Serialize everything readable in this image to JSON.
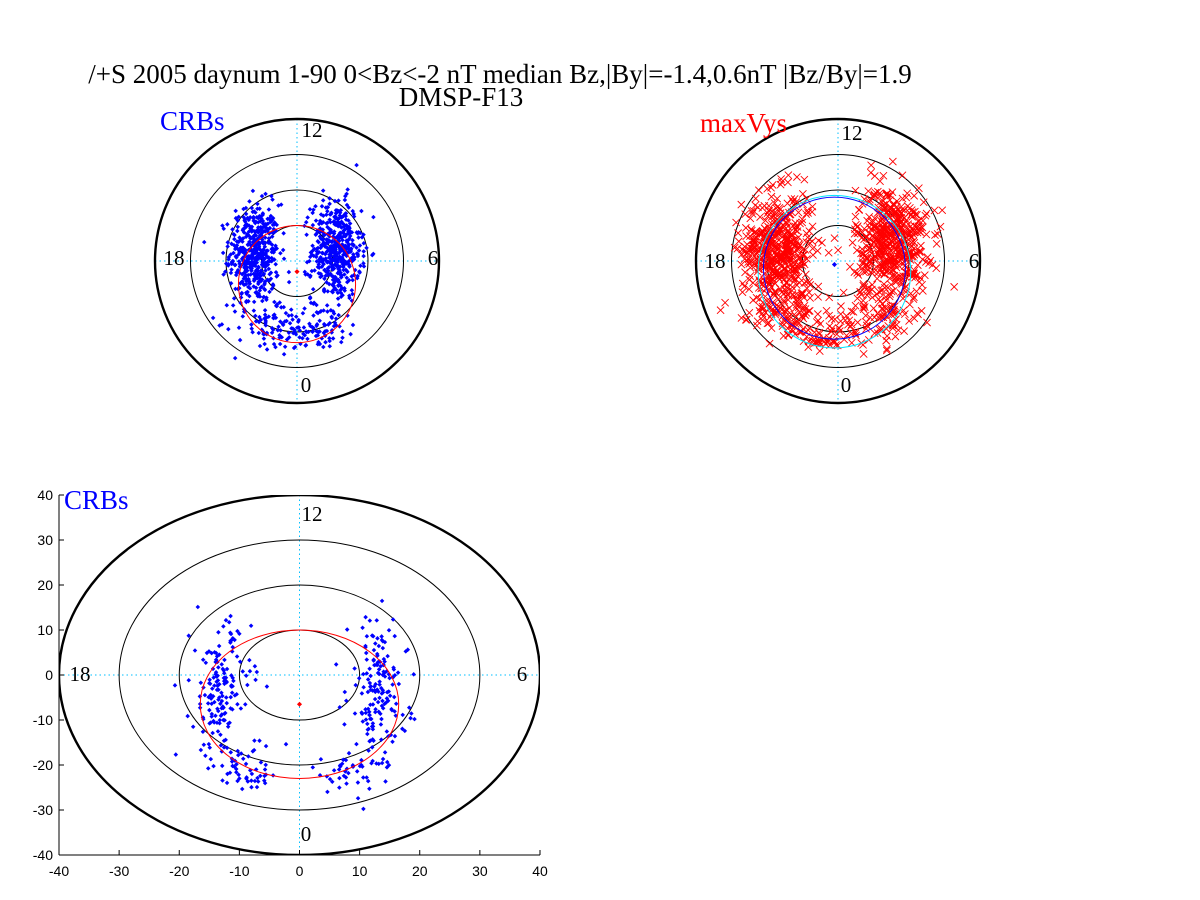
{
  "figure": {
    "title_line1": "/+S 2005 daynum 1-90 0<Bz<-2 nT median Bz,|By|=-1.4,0.6nT |Bz/By|=1.9",
    "title_line2": "DMSP-F13",
    "colors": {
      "crb": "#0000ff",
      "maxvys": "#ff0000",
      "center_dot": "#ff0000",
      "fit_circle": "#ff0000",
      "grid": "#000000",
      "crosshair": "#00bfff",
      "aux_blue": "#0000ff",
      "aux_cyan": "#00e5ff"
    }
  },
  "chart_data": [
    {
      "type": "scatter",
      "id": "crbs_polar",
      "label": "CRBs",
      "label_color": "#0000ff",
      "marker": "dot",
      "clock_labels": {
        "top": "12",
        "bottom": "0",
        "left": "18",
        "right": "6"
      },
      "grid": true,
      "ring_radii": [
        10,
        20,
        30,
        40
      ],
      "fit_circle": {
        "center": [
          0,
          -6.5
        ],
        "radius": 16.5
      },
      "center_point": [
        0,
        -3
      ],
      "clusters": [
        {
          "cx": -12,
          "cy": 2,
          "sx": 3.5,
          "sy": 7,
          "n": 480
        },
        {
          "cx": 11,
          "cy": 3,
          "sx": 3.5,
          "sy": 7,
          "n": 480
        },
        {
          "cx": -8,
          "cy": -17,
          "sx": 5,
          "sy": 4,
          "n": 70
        },
        {
          "cx": 7,
          "cy": -18,
          "sx": 5,
          "sy": 3,
          "n": 60
        },
        {
          "cx": 0,
          "cy": -22,
          "sx": 6,
          "sy": 2,
          "n": 35
        }
      ]
    },
    {
      "type": "scatter",
      "id": "maxvys_polar",
      "label": "maxVys",
      "label_color": "#ff0000",
      "marker": "x",
      "clock_labels": {
        "top": "12",
        "bottom": "0",
        "left": "18",
        "right": "6"
      },
      "grid": true,
      "ring_radii": [
        10,
        20,
        30,
        40
      ],
      "aux_circles": [
        {
          "center": [
            -1,
            -2
          ],
          "radius": 20,
          "color": "#0000ff"
        },
        {
          "center": [
            -1,
            -3
          ],
          "radius": 21.5,
          "color": "#00e5ff"
        }
      ],
      "center_point": [
        -1,
        -1
      ],
      "clusters": [
        {
          "cx": -17,
          "cy": 3,
          "sx": 5,
          "sy": 8,
          "n": 520
        },
        {
          "cx": 15,
          "cy": 5,
          "sx": 5,
          "sy": 8,
          "n": 520
        },
        {
          "cx": -12,
          "cy": -15,
          "sx": 6,
          "sy": 4,
          "n": 90
        },
        {
          "cx": 11,
          "cy": -16,
          "sx": 6,
          "sy": 4,
          "n": 80
        },
        {
          "cx": -5,
          "cy": -22,
          "sx": 6,
          "sy": 2,
          "n": 40
        }
      ]
    },
    {
      "type": "scatter",
      "id": "crbs_cartesian",
      "label": "CRBs",
      "label_color": "#0000ff",
      "marker": "dot",
      "clock_labels": {
        "top": "12",
        "bottom": "0",
        "left": "18",
        "right": "6"
      },
      "grid": true,
      "xlim": [
        -40,
        40
      ],
      "ylim": [
        -40,
        40
      ],
      "xticks": [
        "-40",
        "-30",
        "-20",
        "-10",
        "0",
        "10",
        "20",
        "30",
        "40"
      ],
      "yticks": [
        "40",
        "30",
        "20",
        "10",
        "0",
        "-10",
        "-20",
        "-30",
        "-40"
      ],
      "ring_radii": [
        10,
        20,
        30,
        40
      ],
      "fit_circle": {
        "center": [
          0,
          -6.5
        ],
        "radius": 16.5
      },
      "center_point": [
        0,
        -6.5
      ],
      "clusters": [
        {
          "cx": -13,
          "cy": -4,
          "sx": 2.5,
          "sy": 8,
          "n": 170
        },
        {
          "cx": 13,
          "cy": -4,
          "sx": 2.5,
          "sy": 8,
          "n": 170
        },
        {
          "cx": -8,
          "cy": -21,
          "sx": 3,
          "sy": 2.5,
          "n": 45
        },
        {
          "cx": 8,
          "cy": -22,
          "sx": 3,
          "sy": 2.5,
          "n": 40
        }
      ]
    }
  ]
}
